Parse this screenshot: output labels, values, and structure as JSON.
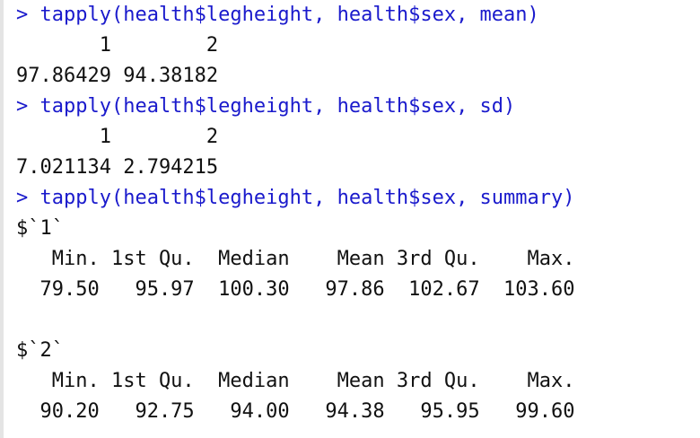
{
  "console": {
    "lines": [
      {
        "type": "cmd",
        "text": "> tapply(health$legheight, health$sex, mean)"
      },
      {
        "type": "out",
        "text": "       1        2"
      },
      {
        "type": "out",
        "text": "97.86429 94.38182"
      },
      {
        "type": "cmd",
        "text": "> tapply(health$legheight, health$sex, sd)"
      },
      {
        "type": "out",
        "text": "       1        2"
      },
      {
        "type": "out",
        "text": "7.021134 2.794215"
      },
      {
        "type": "cmd",
        "text": "> tapply(health$legheight, health$sex, summary)"
      },
      {
        "type": "out",
        "text": "$`1`"
      },
      {
        "type": "out",
        "text": "   Min. 1st Qu.  Median    Mean 3rd Qu.    Max."
      },
      {
        "type": "out",
        "text": "  79.50   95.97  100.30   97.86  102.67  103.60"
      },
      {
        "type": "out",
        "text": ""
      },
      {
        "type": "out",
        "text": "$`2`"
      },
      {
        "type": "out",
        "text": "   Min. 1st Qu.  Median    Mean 3rd Qu.    Max."
      },
      {
        "type": "out",
        "text": "  90.20   92.75   94.00   94.38   95.95   99.60"
      }
    ]
  }
}
